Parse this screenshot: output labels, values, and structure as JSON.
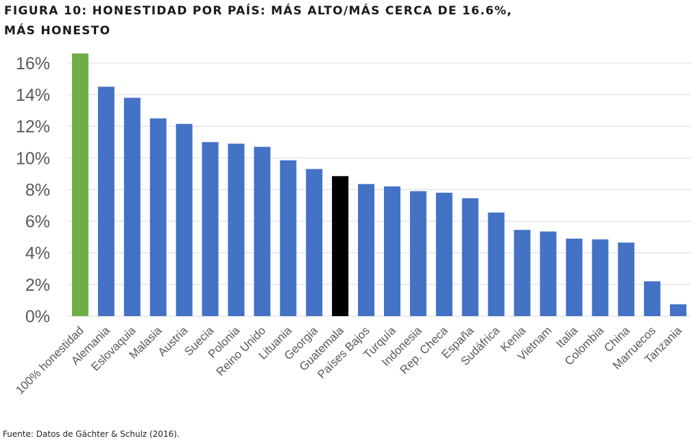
{
  "title": "FIGURA 10: HONESTIDAD POR PAÍS: MÁS ALTO/MÁS CERCA DE 16.6%, MÁS HONESTO",
  "source": "Fuente: Datos de Gächter & Schulz (2016).",
  "colors": {
    "default_bar": "#4472c4",
    "reference_bar": "#70ad47",
    "highlight_bar": "#000000",
    "grid": "#d9d9d9",
    "tick_text": "#595959"
  },
  "chart_data": {
    "type": "bar",
    "title": "FIGURA 10: HONESTIDAD POR PAÍS: MÁS ALTO/MÁS CERCA DE 16.6%, MÁS HONESTO",
    "xlabel": "",
    "ylabel": "",
    "ylim": [
      0,
      16
    ],
    "yticks": [
      "0%",
      "2%",
      "4%",
      "6%",
      "8%",
      "10%",
      "12%",
      "14%",
      "16%"
    ],
    "grid": true,
    "legend": "none",
    "categories": [
      "100% honestidad",
      "Alemania",
      "Eslovaquia",
      "Malasia",
      "Austria",
      "Suecia",
      "Polonia",
      "Reino Unido",
      "Lituania",
      "Georgia",
      "Guatemala",
      "Países Bajos",
      "Turquía",
      "Indonesia",
      "Rep. Checa",
      "España",
      "Sudáfrica",
      "Kenia",
      "Vietnam",
      "Italia",
      "Colombia",
      "China",
      "Marruecos",
      "Tanzania"
    ],
    "values": [
      16.6,
      14.5,
      13.8,
      12.5,
      12.15,
      11.0,
      10.9,
      10.7,
      9.85,
      9.3,
      8.85,
      8.35,
      8.2,
      7.9,
      7.8,
      7.45,
      6.55,
      5.45,
      5.35,
      4.9,
      4.85,
      4.65,
      2.2,
      0.75
    ],
    "bar_colors": [
      "#70ad47",
      "#4472c4",
      "#4472c4",
      "#4472c4",
      "#4472c4",
      "#4472c4",
      "#4472c4",
      "#4472c4",
      "#4472c4",
      "#4472c4",
      "#000000",
      "#4472c4",
      "#4472c4",
      "#4472c4",
      "#4472c4",
      "#4472c4",
      "#4472c4",
      "#4472c4",
      "#4472c4",
      "#4472c4",
      "#4472c4",
      "#4472c4",
      "#4472c4",
      "#4472c4"
    ]
  }
}
